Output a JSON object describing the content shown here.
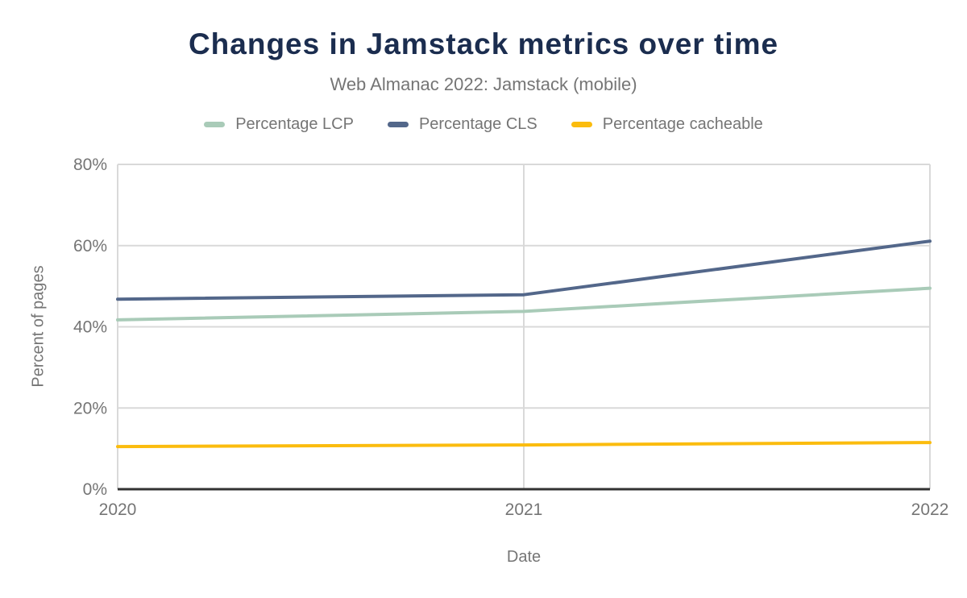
{
  "header": {
    "title": "Changes in Jamstack metrics over time",
    "subtitle": "Web Almanac 2022: Jamstack (mobile)"
  },
  "chart_data": {
    "type": "line",
    "title": "Changes in Jamstack metrics over time",
    "subtitle": "Web Almanac 2022: Jamstack (mobile)",
    "x": [
      "2020",
      "2021",
      "2022"
    ],
    "series": [
      {
        "name": "Percentage LCP",
        "color": "#a9cbb8",
        "values": [
          41.7,
          43.8,
          49.5
        ]
      },
      {
        "name": "Percentage CLS",
        "color": "#53678a",
        "values": [
          46.8,
          47.9,
          61.1
        ]
      },
      {
        "name": "Percentage cacheable",
        "color": "#fbbc0e",
        "values": [
          10.5,
          10.9,
          11.5
        ]
      }
    ],
    "xlabel": "Date",
    "ylabel": "Percent of pages",
    "ylim": [
      0,
      80
    ],
    "yticks": [
      0,
      20,
      40,
      60,
      80
    ],
    "ytick_suffix": "%",
    "grid": true,
    "legend_position": "top",
    "colors": {
      "title": "#1b2d4f",
      "subtitle": "#757575",
      "axis_text": "#757575",
      "legend_text": "#757575",
      "gridline": "#d9d9d9",
      "baseline": "#333333",
      "background": "#ffffff"
    }
  }
}
